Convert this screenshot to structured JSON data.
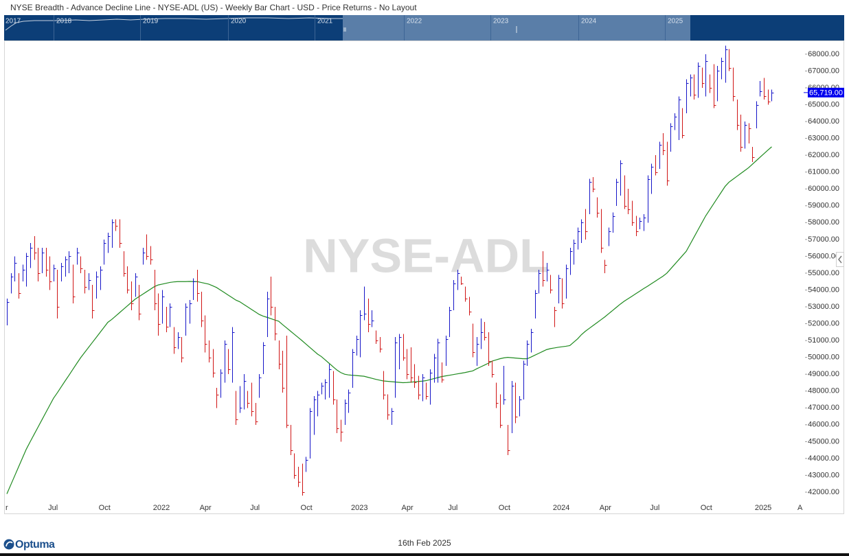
{
  "chart_data": {
    "type": "ohlc",
    "title": "NYSE Breadth - Advance Decline Line - NYSE-ADL (US) - Weekly Bar Chart - USD - Price Returns - No Layout",
    "watermark": "NYSE-ADL",
    "navigator_labels": [
      "2017",
      "2018",
      "2019",
      "2020",
      "2021",
      "2022",
      "2023",
      "2024",
      "2025"
    ],
    "up_color": "#1414c8",
    "down_color": "#d01414",
    "grid": false,
    "ylim": [
      41470,
      68770
    ],
    "yticks": [
      {
        "value": 42000,
        "label": "42000.00"
      },
      {
        "value": 43000,
        "label": "43000.00"
      },
      {
        "value": 44000,
        "label": "44000.00"
      },
      {
        "value": 45000,
        "label": "45000.00"
      },
      {
        "value": 46000,
        "label": "46000.00"
      },
      {
        "value": 47000,
        "label": "47000.00"
      },
      {
        "value": 48000,
        "label": "48000.00"
      },
      {
        "value": 49000,
        "label": "49000.00"
      },
      {
        "value": 50000,
        "label": "50000.00"
      },
      {
        "value": 51000,
        "label": "51000.00"
      },
      {
        "value": 52000,
        "label": "52000.00"
      },
      {
        "value": 53000,
        "label": "53000.00"
      },
      {
        "value": 54000,
        "label": "54000.00"
      },
      {
        "value": 55000,
        "label": "55000.00"
      },
      {
        "value": 56000,
        "label": "56000.00"
      },
      {
        "value": 57000,
        "label": "57000.00"
      },
      {
        "value": 58000,
        "label": "58000.00"
      },
      {
        "value": 59000,
        "label": "59000.00"
      },
      {
        "value": 60000,
        "label": "60000.00"
      },
      {
        "value": 61000,
        "label": "61000.00"
      },
      {
        "value": 62000,
        "label": "62000.00"
      },
      {
        "value": 63000,
        "label": "63000.00"
      },
      {
        "value": 64000,
        "label": "64000.00"
      },
      {
        "value": 65000,
        "label": "65000.00"
      },
      {
        "value": 66000,
        "label": "66000.00"
      },
      {
        "value": 67000,
        "label": "67000.00"
      },
      {
        "value": 68000,
        "label": "68000.00"
      }
    ],
    "last_price": {
      "value": 65719,
      "label": "65,719.00"
    },
    "categories": [
      "r",
      null,
      null,
      null,
      null,
      null,
      null,
      null,
      null,
      null,
      null,
      "Jul",
      null,
      null,
      null,
      null,
      null,
      null,
      null,
      null,
      null,
      null,
      null,
      null,
      "Oct",
      null,
      null,
      null,
      null,
      null,
      null,
      null,
      null,
      null,
      null,
      null,
      null,
      null,
      "2022",
      null,
      null,
      null,
      null,
      null,
      null,
      null,
      null,
      null,
      null,
      null,
      "Apr",
      null,
      null,
      null,
      null,
      null,
      null,
      null,
      null,
      null,
      null,
      null,
      null,
      "Jul",
      null,
      null,
      null,
      null,
      null,
      null,
      null,
      null,
      null,
      null,
      null,
      null,
      "Oct",
      null,
      null,
      null,
      null,
      null,
      null,
      null,
      null,
      null,
      null,
      null,
      null,
      "2023",
      null,
      null,
      null,
      null,
      null,
      null,
      null,
      null,
      null,
      null,
      null,
      null,
      "Apr",
      null,
      null,
      null,
      null,
      null,
      null,
      null,
      null,
      null,
      null,
      null,
      "Jul",
      null,
      null,
      null,
      null,
      null,
      null,
      null,
      null,
      null,
      null,
      null,
      null,
      "Oct",
      null,
      null,
      null,
      null,
      null,
      null,
      null,
      null,
      null,
      null,
      null,
      null,
      null,
      "2024",
      null,
      null,
      null,
      null,
      null,
      null,
      null,
      null,
      null,
      null,
      null,
      "Apr",
      null,
      null,
      null,
      null,
      null,
      null,
      null,
      null,
      null,
      null,
      null,
      null,
      "Jul",
      null,
      null,
      null,
      null,
      null,
      null,
      null,
      null,
      null,
      null,
      null,
      null,
      "Oct",
      null,
      null,
      null,
      null,
      null,
      null,
      null,
      null,
      null,
      null,
      null,
      null,
      null,
      "2025",
      null,
      null,
      null,
      null,
      null,
      null,
      null,
      null,
      null,
      null,
      "A"
    ],
    "high": [
      53500,
      55000,
      56000,
      55000,
      55500,
      56200,
      56800,
      57200,
      56500,
      56500,
      56500,
      56000,
      55500,
      55200,
      55600,
      56000,
      56300,
      55500,
      56500,
      56000,
      55200,
      55000,
      54300,
      55100,
      55400,
      57000,
      57400,
      58200,
      58200,
      58200,
      56300,
      55400,
      54500,
      55000,
      54300,
      56500,
      57300,
      56600,
      55200,
      53800,
      54000,
      53000,
      53200,
      51800,
      51500,
      51200,
      53200,
      53400,
      54700,
      55200,
      53900,
      52500,
      51000,
      50500,
      48200,
      49300,
      51000,
      50500,
      51800,
      48000,
      48300,
      49000,
      48000,
      48500,
      47300,
      49000,
      50900,
      53900,
      54800,
      53000,
      51000,
      50400,
      51300,
      46000,
      44300,
      43500,
      43700,
      44100,
      47000,
      47700,
      48000,
      48500,
      48700,
      49600,
      49200,
      47500,
      46300,
      47500,
      48100,
      50500,
      51300,
      52800,
      54200,
      53500,
      52800,
      51600,
      51200,
      49200,
      47800,
      47000,
      51200,
      51400,
      51400,
      50500,
      50600,
      49600,
      48900,
      49000,
      48500,
      49300,
      50200,
      51100,
      49700,
      51300,
      53000,
      54600,
      55200,
      54800,
      54200,
      53600,
      52000,
      51200,
      52300,
      52100,
      51500,
      49800,
      48500,
      47800,
      49500,
      46000,
      48600,
      48500,
      47700,
      49800,
      51000,
      51700,
      54000,
      55200,
      56300,
      55600,
      54900,
      53000,
      54900,
      54700,
      55500,
      56500,
      57000,
      57700,
      58200,
      58800,
      60600,
      60700,
      59500,
      58800,
      55800,
      57700,
      58600,
      60600,
      61700,
      60800,
      60000,
      59300,
      58400,
      58300,
      58500,
      60800,
      61500,
      62000,
      62800,
      63300,
      62800,
      63900,
      64500,
      65500,
      64800,
      66500,
      66800,
      66800,
      67500,
      67200,
      68000,
      66800,
      67400,
      67300,
      67800,
      68500,
      68300,
      67200,
      65300,
      64400,
      64000,
      63900,
      62500,
      65200,
      66400,
      66600,
      65900,
      65900,
      null,
      null,
      null,
      null,
      null,
      null,
      null
    ],
    "low": [
      51900,
      53800,
      54500,
      53500,
      54500,
      54200,
      55300,
      55800,
      54500,
      55000,
      54800,
      54000,
      54500,
      52300,
      54500,
      54800,
      55000,
      53200,
      55500,
      55000,
      53800,
      54000,
      52300,
      53500,
      54000,
      55500,
      56200,
      56500,
      57500,
      56500,
      54800,
      53800,
      52800,
      53600,
      52200,
      55500,
      55800,
      55500,
      52800,
      51300,
      52000,
      51500,
      51800,
      50200,
      50500,
      49700,
      51300,
      52000,
      53400,
      53300,
      51800,
      50300,
      49700,
      48800,
      47000,
      47600,
      48500,
      49000,
      48500,
      46000,
      46700,
      46900,
      47000,
      46500,
      46000,
      47600,
      49000,
      51200,
      52500,
      51000,
      49300,
      47900,
      45800,
      44200,
      42800,
      42300,
      41800,
      43200,
      44000,
      45400,
      46500,
      47800,
      47500,
      47600,
      47200,
      45500,
      45000,
      46000,
      46700,
      48200,
      50100,
      50000,
      52200,
      51500,
      51800,
      50800,
      50300,
      47500,
      46300,
      46000,
      47600,
      49300,
      49800,
      48700,
      48500,
      48200,
      47500,
      47400,
      47500,
      47200,
      48500,
      48500,
      48500,
      49500,
      51200,
      52800,
      54000,
      54300,
      53300,
      52500,
      50000,
      49500,
      50500,
      51000,
      49500,
      48800,
      47000,
      45800,
      47200,
      44200,
      45500,
      46100,
      46500,
      47500,
      49500,
      50300,
      52300,
      53800,
      54200,
      54500,
      53800,
      51800,
      53200,
      52900,
      53500,
      54900,
      55500,
      56400,
      56800,
      57000,
      58500,
      59800,
      58300,
      56200,
      55000,
      56600,
      57400,
      59000,
      59600,
      58800,
      58500,
      57800,
      57200,
      57600,
      57500,
      58000,
      59700,
      60800,
      61200,
      62000,
      60200,
      62200,
      63500,
      62900,
      63000,
      64500,
      65500,
      65300,
      65400,
      66000,
      65500,
      65700,
      64800,
      65200,
      66500,
      66300,
      67000,
      65200,
      63500,
      62200,
      62400,
      62700,
      61600,
      63600,
      65500,
      65300,
      65000,
      65200,
      null,
      null,
      null,
      null,
      null,
      null,
      null
    ],
    "close": [
      53300,
      54800,
      55600,
      53800,
      55200,
      56000,
      56500,
      56200,
      55000,
      56200,
      55200,
      54500,
      55300,
      53000,
      55400,
      55800,
      56000,
      53600,
      56200,
      55300,
      54200,
      54600,
      52800,
      54800,
      55200,
      56800,
      57200,
      58000,
      57800,
      56800,
      55000,
      54000,
      53200,
      54800,
      52600,
      56200,
      56000,
      55800,
      53200,
      52000,
      53600,
      51800,
      53000,
      50600,
      51200,
      50000,
      53000,
      53200,
      54500,
      53800,
      52200,
      50800,
      50000,
      49100,
      47800,
      49100,
      50800,
      49300,
      51500,
      46300,
      47000,
      48600,
      47300,
      46800,
      46200,
      48800,
      50700,
      53500,
      53000,
      51400,
      49600,
      48200,
      46000,
      44500,
      43000,
      42600,
      42000,
      43900,
      46800,
      47500,
      47800,
      48300,
      48500,
      49300,
      47500,
      45800,
      45600,
      47300,
      47900,
      50300,
      51100,
      52500,
      52600,
      52000,
      52200,
      51000,
      50500,
      47800,
      46600,
      46800,
      50900,
      51200,
      50000,
      49000,
      48800,
      48500,
      47800,
      48800,
      47700,
      49100,
      50000,
      50900,
      48700,
      51100,
      52800,
      54400,
      55000,
      54400,
      53500,
      52700,
      50300,
      50800,
      51500,
      51200,
      49800,
      49000,
      47300,
      46000,
      47500,
      44500,
      48300,
      46500,
      47500,
      49600,
      50800,
      51500,
      53800,
      55000,
      54600,
      55200,
      54000,
      52800,
      54700,
      53200,
      55300,
      56300,
      56800,
      57500,
      58000,
      57500,
      60400,
      60000,
      58600,
      56500,
      55500,
      57500,
      58400,
      60400,
      61500,
      59000,
      58800,
      58000,
      57500,
      58100,
      58300,
      60600,
      61300,
      61000,
      62600,
      62300,
      60500,
      63700,
      64300,
      65300,
      63200,
      66300,
      66600,
      65600,
      67300,
      66300,
      67600,
      66000,
      65000,
      67000,
      67600,
      68300,
      67200,
      65500,
      63800,
      62500,
      63800,
      63600,
      61900,
      65000,
      65800,
      65500,
      65200,
      65719,
      null,
      null,
      null,
      null,
      null,
      null,
      null
    ],
    "moving_average": {
      "color": "#1f8a1f",
      "values": [
        41900,
        42430,
        42960,
        43490,
        44020,
        44550,
        44990,
        45420,
        45850,
        46280,
        46710,
        47140,
        47570,
        47900,
        48250,
        48600,
        48940,
        49290,
        49640,
        49980,
        50280,
        50580,
        50880,
        51180,
        51480,
        51780,
        52080,
        52250,
        52450,
        52650,
        52850,
        53050,
        53250,
        53450,
        53600,
        53750,
        53900,
        54050,
        54200,
        54300,
        54350,
        54400,
        54450,
        54480,
        54500,
        54500,
        54500,
        54510,
        54500,
        54500,
        54450,
        54400,
        54350,
        54250,
        54150,
        54000,
        53850,
        53700,
        53550,
        53400,
        53300,
        53150,
        53000,
        52850,
        52700,
        52550,
        52450,
        52380,
        52300,
        52220,
        52150,
        51950,
        51760,
        51570,
        51380,
        51190,
        51000,
        50800,
        50600,
        50400,
        50200,
        50050,
        49850,
        49650,
        49450,
        49250,
        49100,
        49000,
        48960,
        48940,
        48920,
        48900,
        48880,
        48820,
        48760,
        48700,
        48650,
        48600,
        48580,
        48560,
        48540,
        48520,
        48500,
        48510,
        48530,
        48550,
        48570,
        48590,
        48620,
        48680,
        48740,
        48800,
        48860,
        48900,
        48940,
        48980,
        49020,
        49060,
        49100,
        49150,
        49200,
        49320,
        49430,
        49540,
        49650,
        49780,
        49850,
        49920,
        49970,
        50000,
        49980,
        49960,
        49940,
        49920,
        49920,
        50020,
        50130,
        50240,
        50350,
        50460,
        50520,
        50560,
        50600,
        50630,
        50660,
        50700,
        50900,
        51100,
        51350,
        51550,
        51720,
        51890,
        52060,
        52230,
        52400,
        52590,
        52780,
        52970,
        53160,
        53330,
        53480,
        53630,
        53780,
        53930,
        54080,
        54220,
        54370,
        54520,
        54670,
        54820,
        55000,
        55260,
        55520,
        55780,
        56040,
        56300,
        56720,
        57140,
        57560,
        57980,
        58400,
        58750,
        59100,
        59450,
        59800,
        60150,
        60400,
        60570,
        60740,
        60910,
        61080,
        61250,
        61460,
        61670,
        61880,
        62090,
        62300,
        62500,
        null,
        null,
        null,
        null,
        null,
        null,
        null
      ]
    }
  },
  "footer": {
    "logo": "Optuma",
    "date": "16th Feb 2025"
  }
}
